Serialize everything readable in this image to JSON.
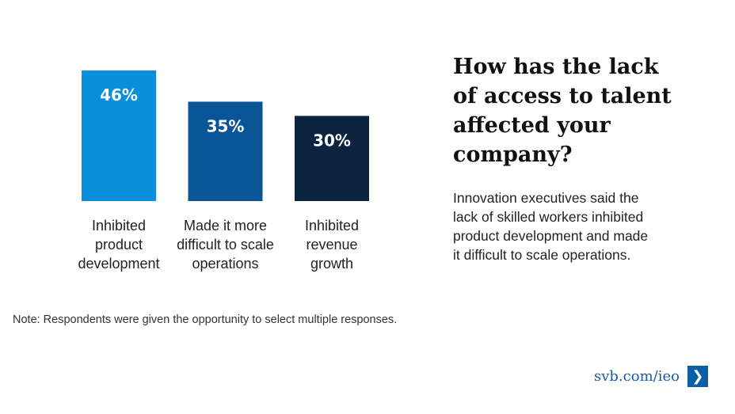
{
  "chart_data": {
    "type": "bar",
    "categories": [
      "Inhibited product development",
      "Made it more difficult to scale operations",
      "Inhibited revenue growth"
    ],
    "category_lines": [
      [
        "Inhibited",
        "product",
        "development"
      ],
      [
        "Made it more",
        "difficult to scale",
        "operations"
      ],
      [
        "Inhibited",
        "revenue",
        "growth"
      ]
    ],
    "values": [
      46,
      35,
      30
    ],
    "value_labels": [
      "46%",
      "35%",
      "30%"
    ],
    "colors": [
      "#0a8fdc",
      "#0a5596",
      "#0c2340"
    ],
    "unit": "%",
    "ylim": [
      0,
      50
    ],
    "grid": false
  },
  "headline": "How has the lack\nof access to talent\naffected your\ncompany?",
  "description": "Innovation executives said the\nlack of skilled workers inhibited\nproduct development and made\nit difficult to scale operations.",
  "note": "Note: Respondents were given the opportunity to select multiple responses.",
  "link": {
    "text": "svb.com/ieo",
    "icon": "chevron-right-icon",
    "arrow": "❯"
  }
}
